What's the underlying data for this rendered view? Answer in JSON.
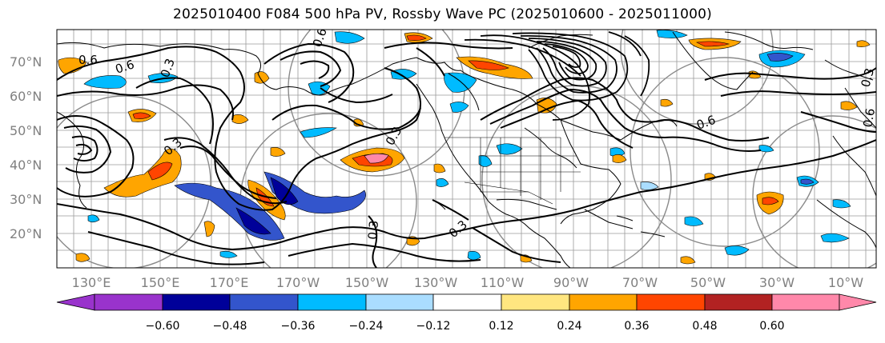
{
  "title": "2025010400 F084 500 hPa PV, Rossby Wave PC (2025010600 - 2025011000)",
  "lat_labels": [
    "70°N",
    "60°N",
    "50°N",
    "40°N",
    "30°N",
    "20°N"
  ],
  "lon_labels": [
    "130°E",
    "150°E",
    "170°E",
    "170°W",
    "150°W",
    "130°W",
    "110°W",
    "90°W",
    "70°W",
    "50°W",
    "30°W",
    "10°W"
  ],
  "colorbar": {
    "labels": [
      "−0.60",
      "−0.48",
      "−0.36",
      "−0.24",
      "−0.12",
      "0.12",
      "0.24",
      "0.36",
      "0.48",
      "0.60"
    ],
    "colors": [
      "#9933cc",
      "#000099",
      "#3355cc",
      "#00bbff",
      "#aaddff",
      "#ffffff",
      "#ffe680",
      "#ffa500",
      "#ff4500",
      "#b22222",
      "#ff88aa",
      "#ff88aa"
    ]
  },
  "contour_labels": [
    "0.6",
    "0.3",
    "0.6",
    "0.3",
    "0.3",
    "0.6",
    "0.3",
    "0.6",
    "0.3",
    "0.6",
    "0.3"
  ]
}
